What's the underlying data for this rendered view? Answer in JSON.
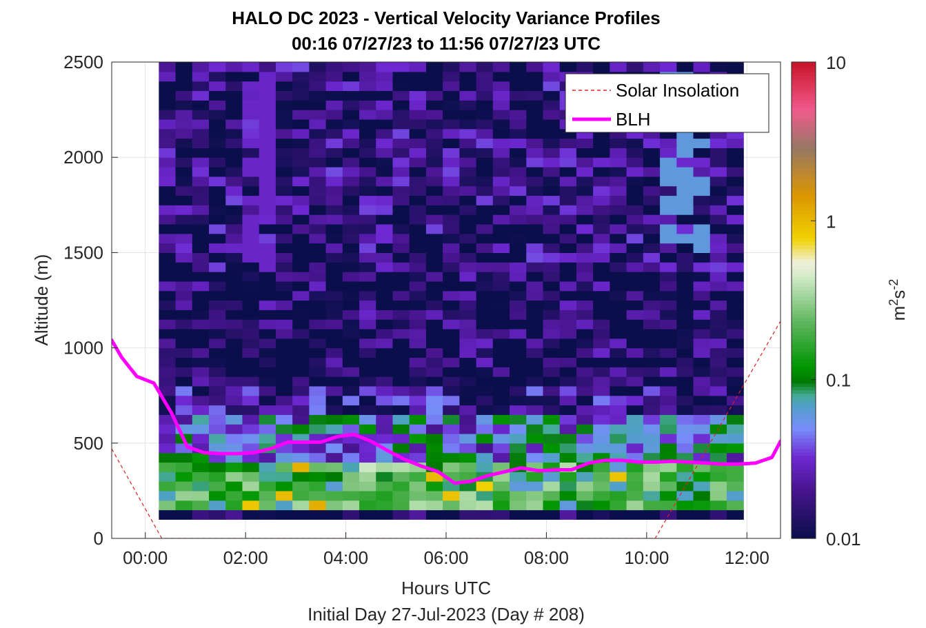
{
  "chart_data": {
    "type": "heatmap",
    "title": "HALO DC 2023 - Vertical Velocity Variance Profiles",
    "subtitle": "00:16 07/27/23 to 11:56 07/27/23  UTC",
    "xlabel": "Hours UTC",
    "xlabel2": "Initial Day 27-Jul-2023 (Day # 208)",
    "ylabel": "Altitude (m)",
    "xlim_hours": [
      -0.67,
      12.67
    ],
    "ylim": [
      0,
      2500
    ],
    "x_ticks": [
      0,
      2,
      4,
      6,
      8,
      10,
      12
    ],
    "x_tick_labels": [
      "00:00",
      "02:00",
      "04:00",
      "06:00",
      "08:00",
      "10:00",
      "12:00"
    ],
    "y_ticks": [
      0,
      500,
      1000,
      1500,
      2000,
      2500
    ],
    "y_tick_labels": [
      "0",
      "500",
      "1000",
      "1500",
      "2000",
      "2500"
    ],
    "grid": true,
    "colorbar": {
      "scale": "log",
      "range": [
        0.01,
        10
      ],
      "ticks": [
        0.01,
        0.1,
        1,
        10
      ],
      "tick_labels": [
        "0.01",
        "0.1",
        "1",
        "10"
      ],
      "label_base": "m",
      "label_exp1": "2",
      "label_mid": "s",
      "label_exp2": "-2"
    },
    "heatmap": {
      "t_start_hours": 0.27,
      "t_end_hours": 11.93,
      "n_columns": 35,
      "alt_bottom_m": 100,
      "alt_top_m": 2500,
      "gate_m": 50,
      "variance_m2s2_by_height_band": [
        {
          "band": "100-150",
          "value": 0.01
        },
        {
          "band": "150-400",
          "value": 0.15
        },
        {
          "band": "400-650",
          "value": 0.05
        },
        {
          "band": "650-800",
          "value": 0.02
        },
        {
          "band": "800-1400",
          "value": 0.012
        },
        {
          "band": "1400-2500",
          "value": 0.015
        }
      ]
    },
    "series": [
      {
        "name": "Solar Insolation",
        "style": "dashed",
        "color": "#e02020",
        "x": [
          -0.67,
          0.33,
          10.17,
          12.67
        ],
        "y": [
          470,
          0,
          0,
          1140
        ]
      },
      {
        "name": "BLH",
        "style": "solid",
        "color": "#ff00ff",
        "x": [
          -0.67,
          -0.47,
          -0.17,
          0.17,
          0.52,
          0.84,
          1.17,
          1.5,
          1.84,
          2.17,
          2.5,
          2.84,
          3.17,
          3.5,
          3.84,
          4.17,
          4.5,
          4.84,
          5.17,
          5.5,
          5.84,
          6.17,
          6.5,
          6.84,
          7.17,
          7.5,
          7.84,
          8.17,
          8.5,
          8.84,
          9.17,
          9.5,
          9.84,
          10.17,
          10.5,
          10.84,
          11.17,
          11.5,
          11.84,
          12.17,
          12.5,
          12.67
        ],
        "y": [
          1040,
          950,
          850,
          815,
          660,
          480,
          450,
          445,
          445,
          450,
          470,
          505,
          505,
          505,
          535,
          545,
          510,
          460,
          415,
          380,
          350,
          290,
          300,
          330,
          350,
          370,
          355,
          360,
          360,
          395,
          410,
          410,
          400,
          400,
          405,
          400,
          395,
          390,
          390,
          395,
          425,
          510
        ]
      }
    ],
    "legend": {
      "placement": "top-right",
      "entries": [
        "Solar Insolation",
        "BLH"
      ]
    }
  }
}
